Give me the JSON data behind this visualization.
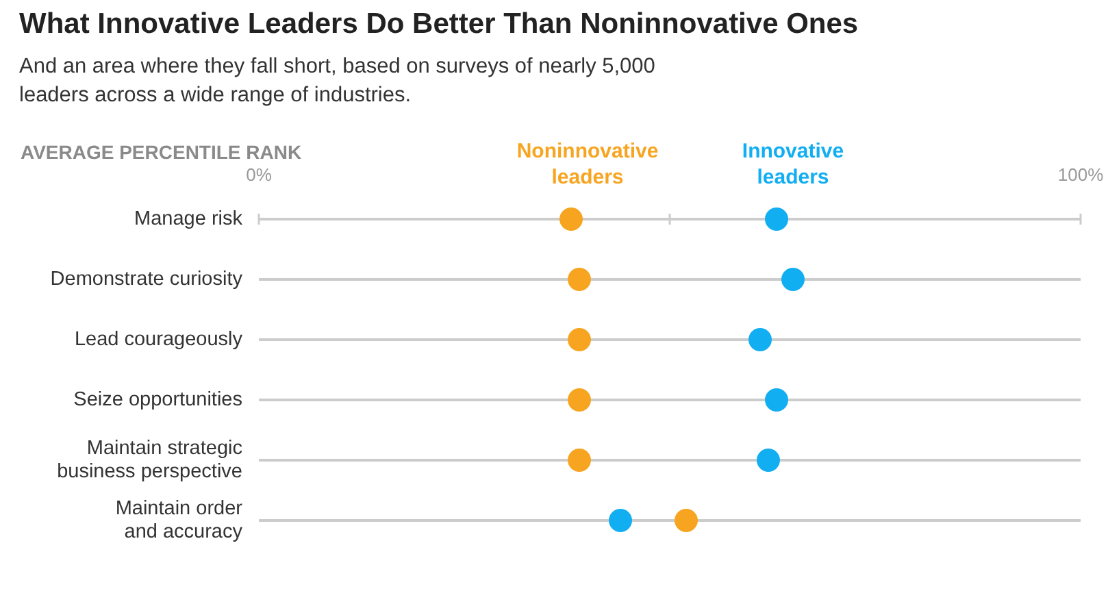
{
  "chart_data": {
    "type": "scatter",
    "title": "What Innovative Leaders Do Better Than Noninnovative Ones",
    "subtitle": "And an area where they fall short, based on surveys of nearly 5,000 leaders across a wide range of industries.",
    "xlabel": "AVERAGE PERCENTILE RANK",
    "orientation": "horizontal",
    "categories": [
      "Manage risk",
      "Demonstrate curiosity",
      "Lead courageously",
      "Seize opportunities",
      "Maintain strategic business perspective",
      "Maintain order and accuracy"
    ],
    "series": [
      {
        "name": "Noninnovative leaders",
        "color": "#f7a521",
        "values": [
          38,
          39,
          39,
          39,
          39,
          52
        ]
      },
      {
        "name": "Innovative leaders",
        "color": "#12aef2",
        "values": [
          63,
          65,
          61,
          63,
          62,
          44
        ]
      }
    ],
    "xlim": [
      0,
      100
    ],
    "xticks": [
      {
        "value": 0,
        "label": "0%"
      },
      {
        "value": 50,
        "label": null
      },
      {
        "value": 100,
        "label": "100%"
      }
    ],
    "grid": "y",
    "marker": "circle"
  }
}
